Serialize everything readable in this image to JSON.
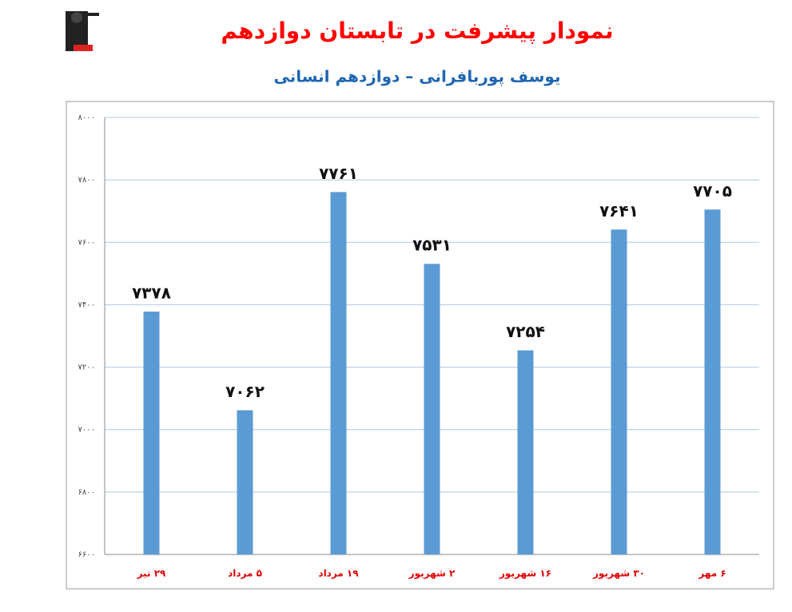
{
  "chart_data": {
    "type": "bar",
    "title": "نمودار پیشرفت در تابستان دوازدهم",
    "subtitle": "یوسف پوربافرانی – دوازدهم انسانی",
    "categories": [
      "۲۹ تیر",
      "۵ مرداد",
      "۱۹ مرداد",
      "۲ شهریور",
      "۱۶ شهریور",
      "۳۰ شهریور",
      "۶ مهر"
    ],
    "values": [
      7378,
      7062,
      7761,
      7531,
      7254,
      7641,
      7705
    ],
    "value_labels": [
      "۷۳۷۸",
      "۷۰۶۲",
      "۷۷۶۱",
      "۷۵۳۱",
      "۷۲۵۴",
      "۷۶۴۱",
      "۷۷۰۵"
    ],
    "color": "#5b9bd5",
    "ylim": [
      6600,
      8000
    ],
    "yticks": [
      {
        "value": 6600,
        "label": "۶۶۰۰"
      },
      {
        "value": 6800,
        "label": "۶۸۰۰"
      },
      {
        "value": 7000,
        "label": "۷۰۰۰"
      },
      {
        "value": 7200,
        "label": "۷۲۰۰"
      },
      {
        "value": 7400,
        "label": "۷۴۰۰"
      },
      {
        "value": 7600,
        "label": "۷۶۰۰"
      },
      {
        "value": 7800,
        "label": "۷۸۰۰"
      },
      {
        "value": 8000,
        "label": "۸۰۰۰"
      }
    ],
    "grid": true
  }
}
